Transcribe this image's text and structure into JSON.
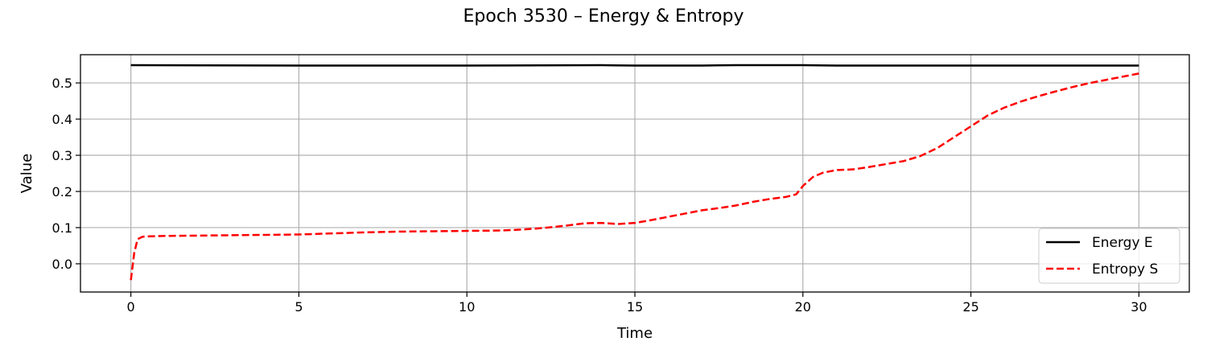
{
  "chart_data": {
    "type": "line",
    "title": "Epoch 3530 – Energy & Entropy",
    "xlabel": "Time",
    "ylabel": "Value",
    "xlim": [
      -1.5,
      31.5
    ],
    "ylim": [
      -0.078,
      0.578
    ],
    "xticks": [
      0,
      5,
      10,
      15,
      20,
      25,
      30
    ],
    "yticks": [
      0.0,
      0.1,
      0.2,
      0.3,
      0.4,
      0.5
    ],
    "grid": true,
    "legend": "lower-right",
    "series": [
      {
        "name": "Energy E",
        "color": "#000000",
        "style": "solid",
        "x": [
          0,
          5,
          10,
          14,
          15,
          17,
          18,
          20,
          21,
          25,
          30
        ],
        "y": [
          0.549,
          0.548,
          0.548,
          0.549,
          0.548,
          0.548,
          0.549,
          0.549,
          0.548,
          0.548,
          0.548
        ]
      },
      {
        "name": "Entropy S",
        "color": "#ff0000",
        "style": "dashed",
        "x": [
          0,
          0.1,
          0.2,
          0.35,
          0.6,
          1,
          2,
          3,
          4,
          5,
          6,
          7,
          8,
          9,
          10,
          11,
          11.5,
          12,
          12.5,
          13,
          13.5,
          14,
          14.5,
          15,
          15.5,
          16,
          16.5,
          17,
          17.5,
          18,
          18.5,
          19,
          19.5,
          19.8,
          20,
          20.3,
          20.6,
          21,
          21.5,
          22,
          22.5,
          23,
          23.5,
          24,
          24.5,
          25,
          25.5,
          26,
          26.5,
          27,
          27.5,
          28,
          28.5,
          29,
          29.5,
          30
        ],
        "y": [
          -0.045,
          0.03,
          0.068,
          0.075,
          0.076,
          0.077,
          0.078,
          0.079,
          0.08,
          0.081,
          0.084,
          0.087,
          0.089,
          0.09,
          0.091,
          0.092,
          0.094,
          0.097,
          0.101,
          0.106,
          0.112,
          0.113,
          0.11,
          0.113,
          0.121,
          0.13,
          0.139,
          0.148,
          0.154,
          0.161,
          0.171,
          0.179,
          0.185,
          0.192,
          0.215,
          0.24,
          0.252,
          0.259,
          0.261,
          0.268,
          0.276,
          0.284,
          0.298,
          0.32,
          0.35,
          0.38,
          0.41,
          0.432,
          0.449,
          0.463,
          0.476,
          0.488,
          0.499,
          0.508,
          0.517,
          0.526
        ]
      }
    ]
  }
}
